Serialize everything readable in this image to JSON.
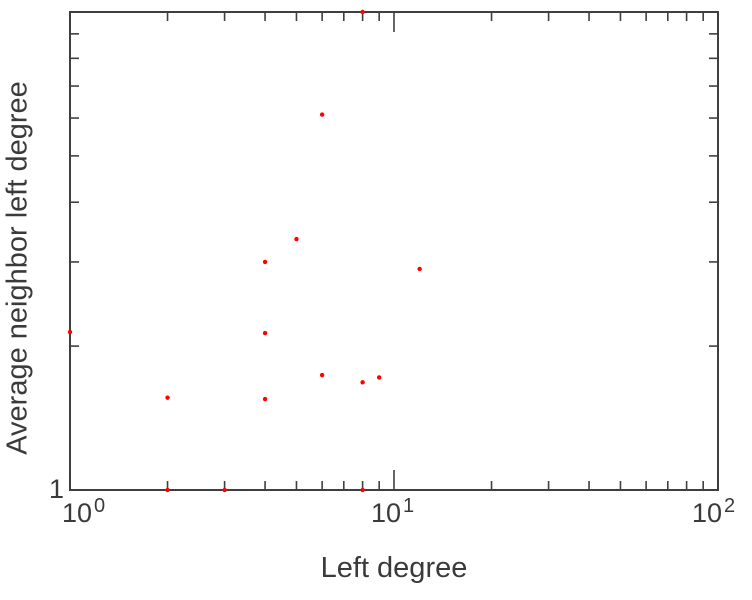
{
  "chart": {
    "xlabel": "Left degree",
    "ylabel": "Average neighbor left degree",
    "x_tick_labels": [
      {
        "base": "10",
        "exp": "0"
      },
      {
        "base": "10",
        "exp": "1"
      },
      {
        "base": "10",
        "exp": "2"
      }
    ],
    "y_tick_label": "1"
  },
  "chart_data": {
    "type": "scatter",
    "title": "",
    "xlabel": "Left degree",
    "ylabel": "Average neighbor left degree",
    "xscale": "log",
    "yscale": "log",
    "xlim": [
      1,
      100
    ],
    "ylim": [
      1,
      10
    ],
    "grid": false,
    "legend": "none",
    "marker": "dot",
    "marker_size": 2.2,
    "point_color": "#ff0000",
    "axis_color": "#3f3f3f",
    "text_color": "#3a3a3a",
    "background": "#ffffff",
    "points": [
      [
        1,
        2.14
      ],
      [
        2,
        1.56
      ],
      [
        2,
        1.0
      ],
      [
        3,
        1.0
      ],
      [
        4,
        3.0
      ],
      [
        4,
        2.13
      ],
      [
        4,
        1.55
      ],
      [
        5,
        3.35
      ],
      [
        6,
        6.1
      ],
      [
        6,
        1.74
      ],
      [
        8,
        10.0
      ],
      [
        8,
        1.68
      ],
      [
        8,
        1.0
      ],
      [
        9,
        1.72
      ],
      [
        12,
        2.9
      ]
    ]
  }
}
